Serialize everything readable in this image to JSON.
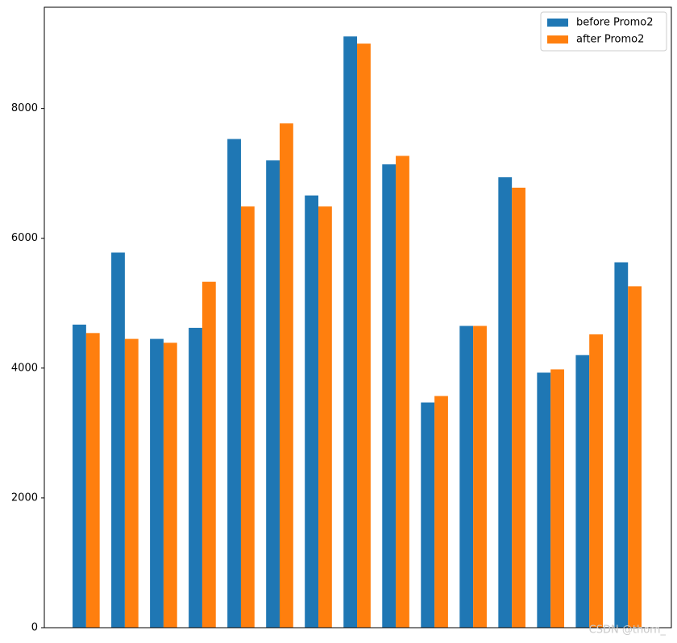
{
  "chart_data": {
    "type": "bar",
    "categories": [
      null,
      null,
      null,
      null,
      null,
      null,
      null,
      null,
      null,
      null,
      null,
      null,
      null,
      null,
      null
    ],
    "series": [
      {
        "name": "before Promo2",
        "color": "#1f77b4",
        "values": [
          4670,
          5780,
          4450,
          4620,
          7530,
          7200,
          6660,
          9110,
          7140,
          3470,
          4650,
          6940,
          3930,
          4200,
          5630
        ]
      },
      {
        "name": "after Promo2",
        "color": "#ff7f0e",
        "values": [
          4540,
          4450,
          4390,
          5330,
          6490,
          7770,
          6490,
          9000,
          7270,
          3570,
          4650,
          6780,
          3980,
          4520,
          5260
        ]
      }
    ],
    "ylim": [
      0,
      9560
    ],
    "yticks": [
      0,
      2000,
      4000,
      6000,
      8000
    ],
    "legend": "upper right",
    "watermark": "CSDN @thorn_"
  }
}
